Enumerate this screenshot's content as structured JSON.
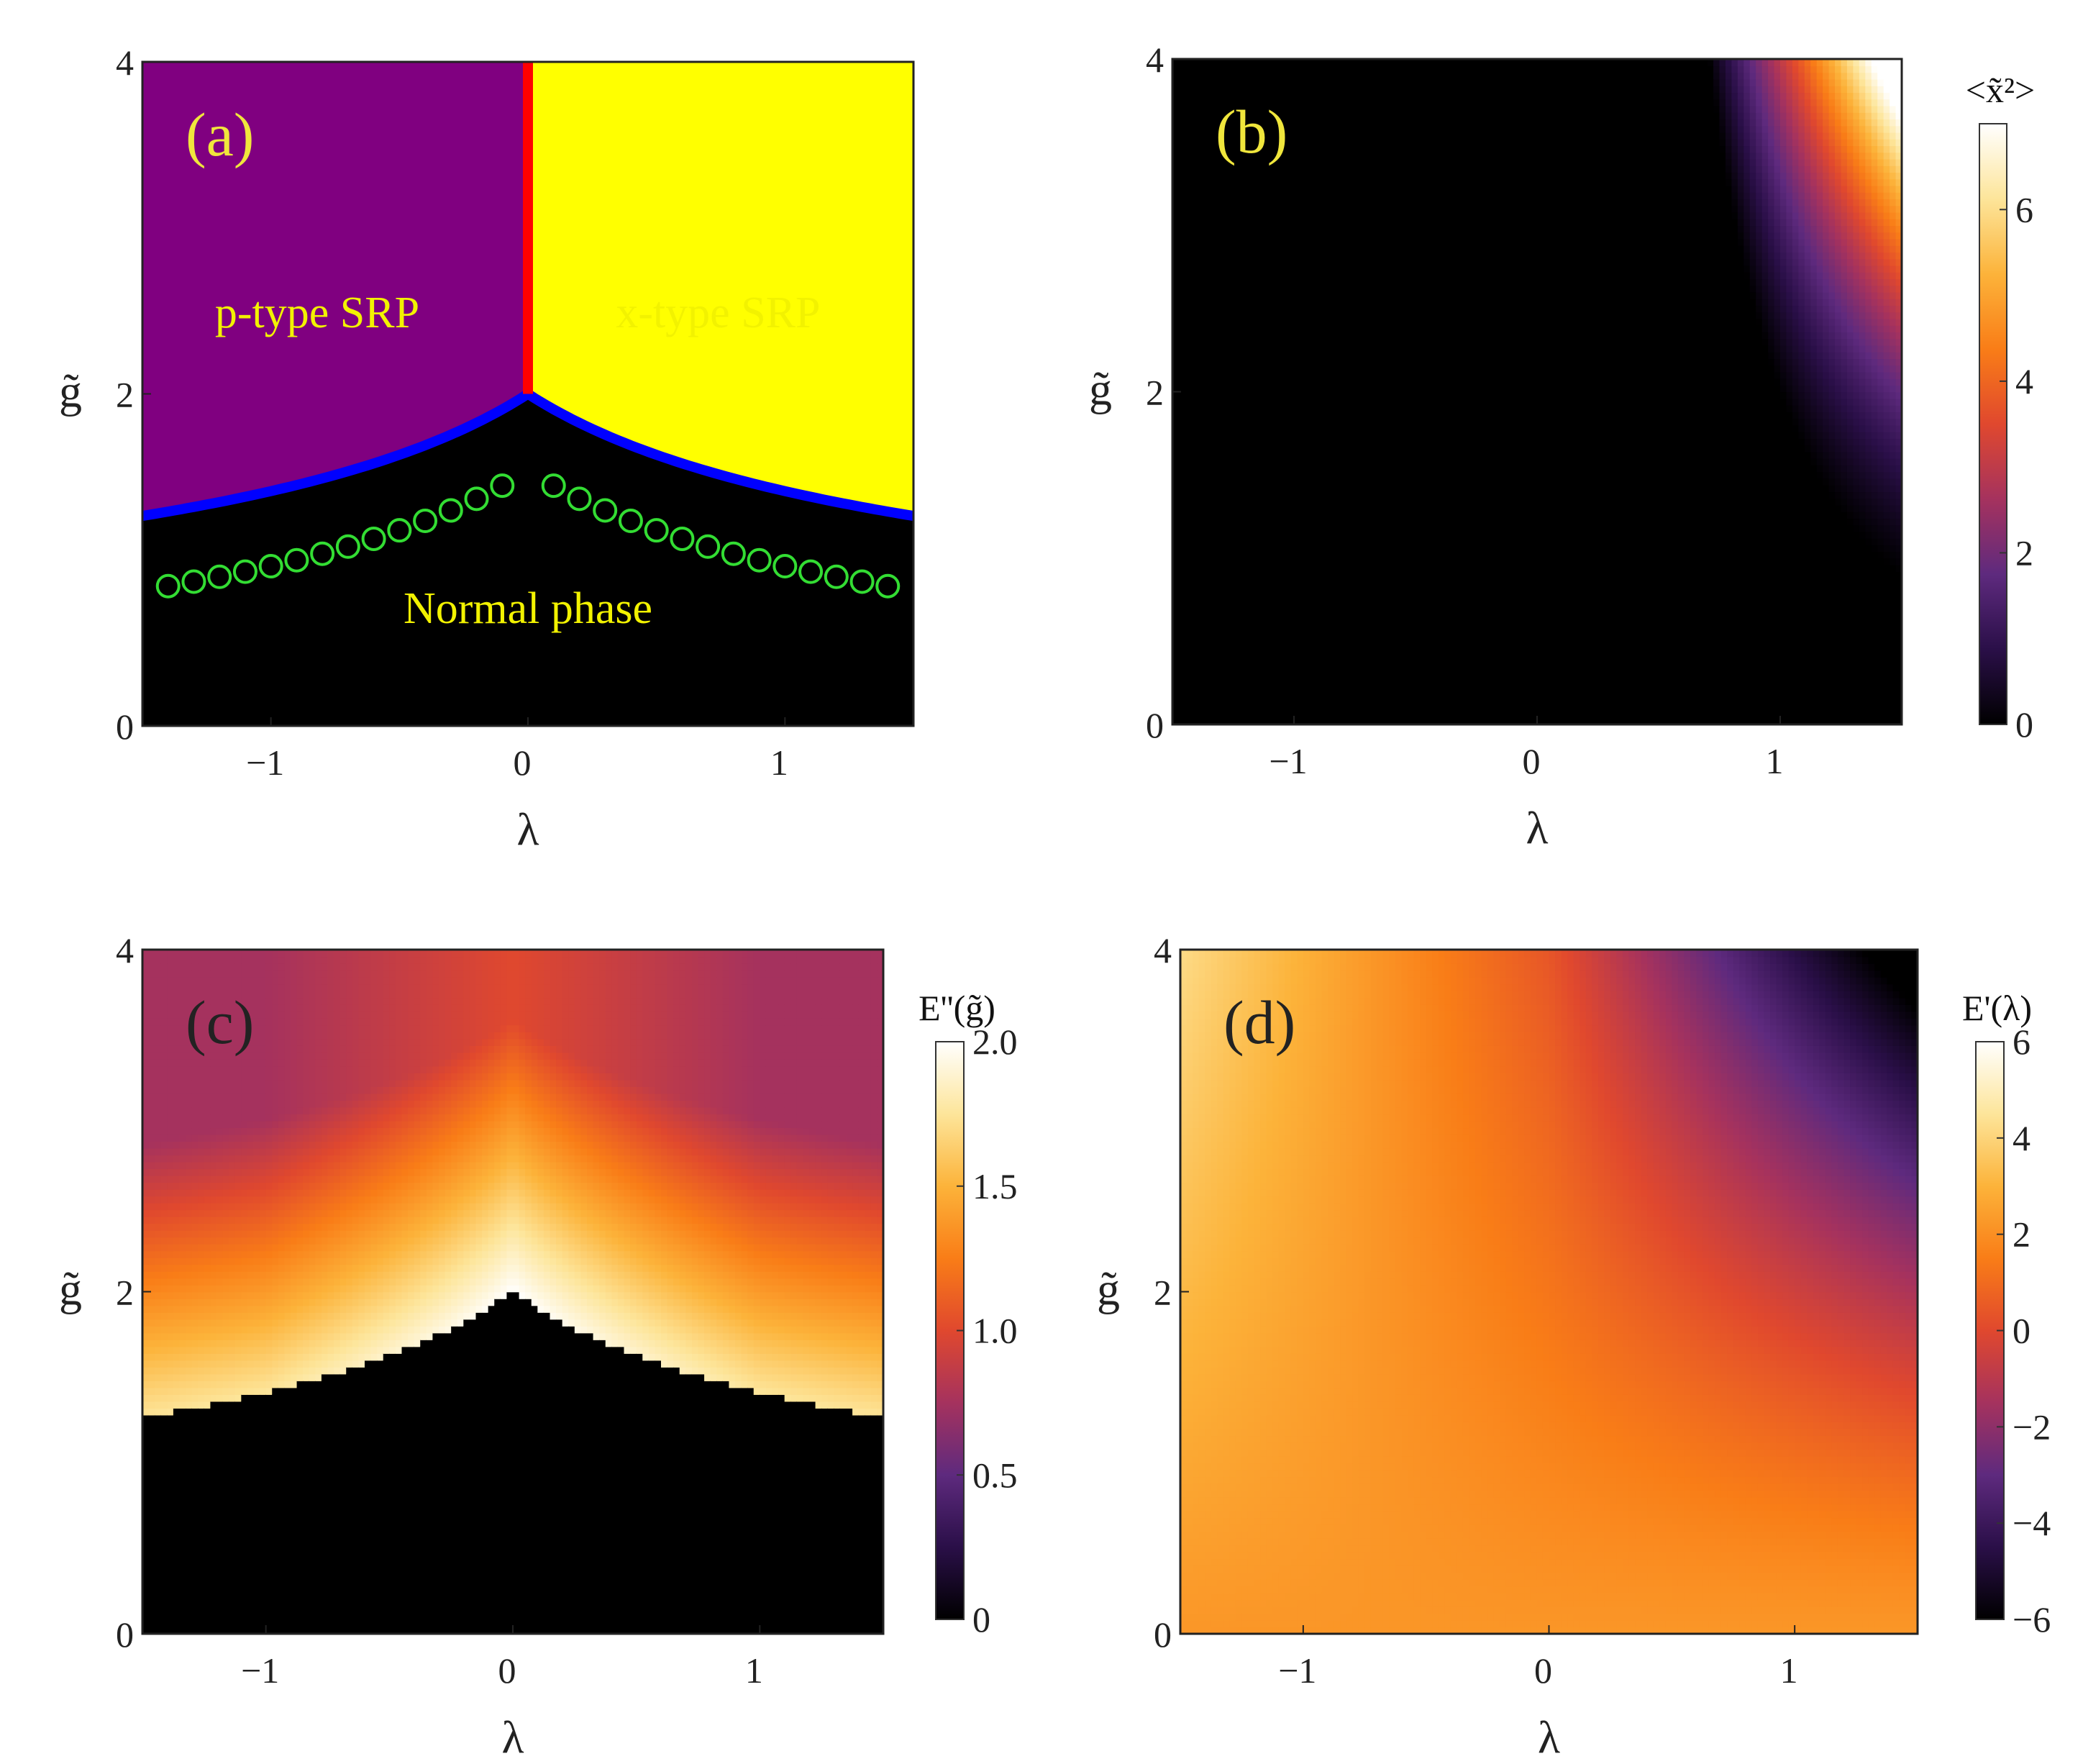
{
  "chart_data": [
    {
      "panel": "(a)",
      "type": "heatmap",
      "xlabel": "λ",
      "ylabel": "g̃",
      "xlim": [
        -1.5,
        1.5
      ],
      "ylim": [
        0,
        4
      ],
      "xticks": [
        "−1",
        "0",
        "1"
      ],
      "yticks": [
        "0",
        "2",
        "4"
      ],
      "regions": [
        {
          "label": "p-type SRP",
          "color": "#800080"
        },
        {
          "label": "x-type SRP",
          "color": "#ffff00"
        },
        {
          "label": "Normal phase",
          "color": "#000000"
        }
      ],
      "boundary_color": "#0000ff",
      "vertical_line_color": "#ff0000",
      "marker_color": "#33dd33",
      "marker_lambda": [
        -1.4,
        -1.3,
        -1.2,
        -1.1,
        -1.0,
        -0.9,
        -0.8,
        -0.7,
        -0.6,
        -0.5,
        -0.4,
        -0.3,
        -0.2,
        -0.1,
        0.1,
        0.2,
        0.3,
        0.4,
        0.5,
        0.6,
        0.7,
        0.8,
        0.9,
        1.0,
        1.1,
        1.2,
        1.3,
        1.4
      ],
      "critical_g": [
        0.842,
        0.869,
        0.898,
        0.929,
        0.962,
        0.998,
        1.037,
        1.08,
        1.127,
        1.178,
        1.235,
        1.298,
        1.368,
        1.447,
        1.447,
        1.368,
        1.298,
        1.235,
        1.178,
        1.127,
        1.08,
        1.037,
        0.998,
        0.962,
        0.929,
        0.898,
        0.869,
        0.842
      ]
    },
    {
      "panel": "(b)",
      "type": "heatmap",
      "xlabel": "λ",
      "ylabel": "g̃",
      "xlim": [
        -1.5,
        1.5
      ],
      "ylim": [
        0,
        4
      ],
      "xticks": [
        "−1",
        "0",
        "1"
      ],
      "yticks": [
        "0",
        "2",
        "4"
      ],
      "colorbar_title": "<x̃²>",
      "colorbar_ticks": [
        "0",
        "2",
        "4",
        "6"
      ],
      "colorbar_range": [
        0,
        7
      ]
    },
    {
      "panel": "(c)",
      "type": "heatmap",
      "xlabel": "λ",
      "ylabel": "g̃",
      "xlim": [
        -1.5,
        1.5
      ],
      "ylim": [
        0,
        4
      ],
      "xticks": [
        "−1",
        "0",
        "1"
      ],
      "yticks": [
        "0",
        "2",
        "4"
      ],
      "colorbar_title": "E''(g̃)",
      "colorbar_ticks": [
        "0",
        "0.5",
        "1.0",
        "1.5",
        "2.0"
      ],
      "colorbar_range": [
        0,
        2
      ]
    },
    {
      "panel": "(d)",
      "type": "heatmap",
      "xlabel": "λ",
      "ylabel": "g̃",
      "xlim": [
        -1.5,
        1.5
      ],
      "ylim": [
        0,
        4
      ],
      "xticks": [
        "−1",
        "0",
        "1"
      ],
      "yticks": [
        "0",
        "2",
        "4"
      ],
      "colorbar_title": "E'(λ)",
      "colorbar_ticks": [
        "−6",
        "−4",
        "−2",
        "0",
        "2",
        "4",
        "6"
      ],
      "colorbar_range": [
        -6,
        6
      ]
    }
  ],
  "colors": {
    "colormap": [
      "#000000",
      "#2a0f48",
      "#5e2a7e",
      "#a5325e",
      "#e0482e",
      "#f97d17",
      "#fcb33a",
      "#fde59a",
      "#ffffff"
    ],
    "panel_label": "#f0e63c",
    "panel_label_dark": "#222222"
  }
}
